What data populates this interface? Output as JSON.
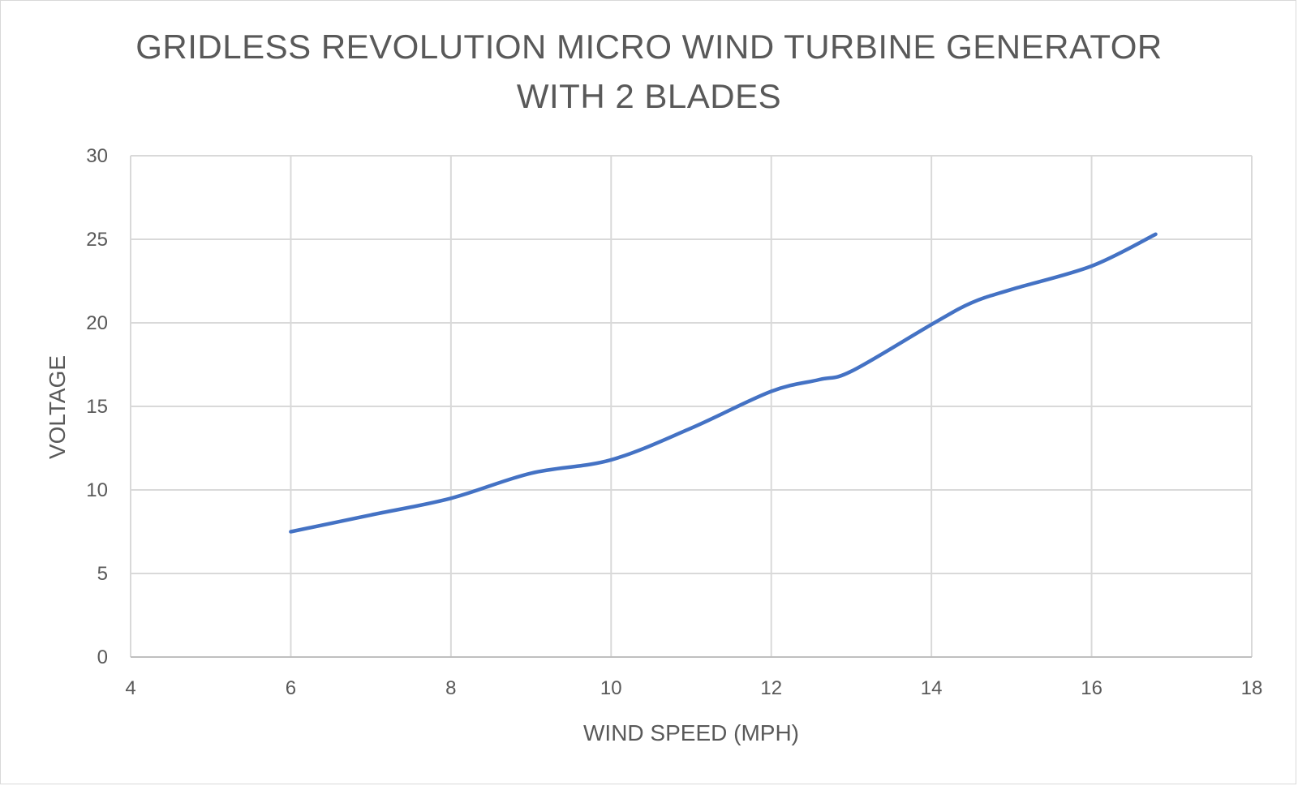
{
  "chart_data": {
    "type": "line",
    "title_lines": [
      "GRIDLESS REVOLUTION MICRO WIND TURBINE GENERATOR",
      "WITH 2 BLADES"
    ],
    "xlabel": "WIND SPEED (MPH)",
    "ylabel": "VOLTAGE",
    "xlim": [
      4,
      18
    ],
    "ylim": [
      0,
      30
    ],
    "x_ticks": [
      "4",
      "6",
      "8",
      "10",
      "12",
      "14",
      "16",
      "18"
    ],
    "y_ticks": [
      "0",
      "5",
      "10",
      "15",
      "20",
      "25",
      "30"
    ],
    "grid": true,
    "smooth": true,
    "series": [
      {
        "color": "#4472C4",
        "points": [
          {
            "x": 6.0,
            "y": 7.5
          },
          {
            "x": 7.0,
            "y": 8.5
          },
          {
            "x": 8.0,
            "y": 9.5
          },
          {
            "x": 9.0,
            "y": 11.0
          },
          {
            "x": 10.0,
            "y": 11.8
          },
          {
            "x": 11.0,
            "y": 13.7
          },
          {
            "x": 12.0,
            "y": 15.9
          },
          {
            "x": 12.6,
            "y": 16.6
          },
          {
            "x": 13.0,
            "y": 17.1
          },
          {
            "x": 14.0,
            "y": 19.9
          },
          {
            "x": 14.5,
            "y": 21.2
          },
          {
            "x": 15.0,
            "y": 22.0
          },
          {
            "x": 16.0,
            "y": 23.4
          },
          {
            "x": 16.8,
            "y": 25.3
          }
        ]
      }
    ]
  }
}
